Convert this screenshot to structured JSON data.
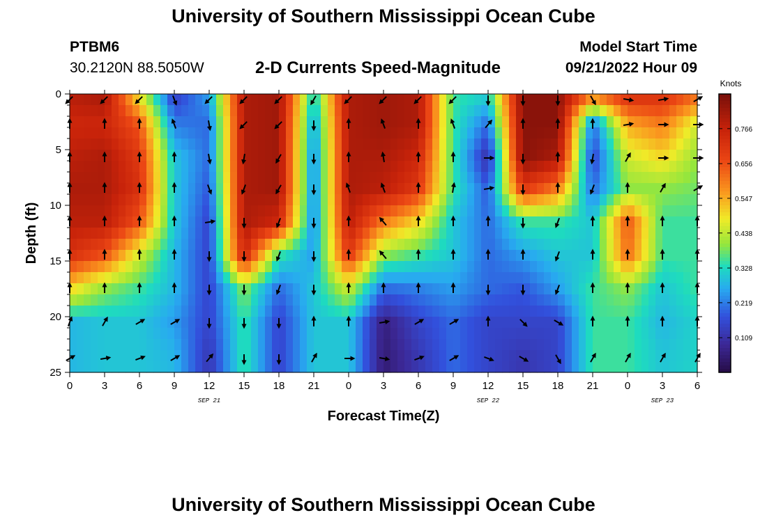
{
  "chart_data": {
    "type": "heatmap",
    "title": "University of Southern Mississippi Ocean Cube",
    "subtitle": "2-D Currents Speed-Magnitude",
    "station": "PTBM6",
    "location": "30.2120N  88.5050W",
    "model_start_label": "Model Start Time",
    "model_start_value": "09/21/2022 Hour 09",
    "footer_title": "University of Southern Mississippi Ocean Cube",
    "xlabel": "Forecast Time(Z)",
    "ylabel": "Depth (ft)",
    "x_tick_labels": [
      "0",
      "3",
      "6",
      "9",
      "12",
      "15",
      "18",
      "21",
      "0",
      "3",
      "6",
      "9",
      "12",
      "15",
      "18",
      "21",
      "0",
      "3",
      "6"
    ],
    "date_labels": [
      {
        "text": "SEP 21",
        "tick_index": 4
      },
      {
        "text": "SEP 22",
        "tick_index": 12
      },
      {
        "text": "SEP 23",
        "tick_index": 17
      }
    ],
    "y_tick_labels": [
      "0",
      "5",
      "10",
      "15",
      "20",
      "25"
    ],
    "ylim": [
      0,
      25
    ],
    "colorbar": {
      "title": "Knots",
      "min": 0.0,
      "max": 0.875,
      "tick_labels": [
        "0.109",
        "0.219",
        "0.328",
        "0.438",
        "0.547",
        "0.656",
        "0.766"
      ],
      "tick_values": [
        0.109,
        0.219,
        0.328,
        0.438,
        0.547,
        0.656,
        0.766
      ]
    },
    "depth_levels_ft": [
      0.5,
      2.75,
      5.75,
      8.5,
      11.5,
      14.5,
      17.5,
      20.5,
      23.75
    ],
    "time_columns_hours": [
      0,
      3,
      6,
      9,
      12,
      15,
      18,
      21,
      24,
      27,
      30,
      33,
      36,
      39,
      42,
      45,
      48,
      51,
      54
    ],
    "speed_knots": [
      [
        0.78,
        0.8,
        0.5,
        0.15,
        0.25,
        0.8,
        0.82,
        0.3,
        0.8,
        0.82,
        0.8,
        0.35,
        0.3,
        0.85,
        0.85,
        0.55,
        0.7,
        0.7,
        0.6
      ],
      [
        0.75,
        0.75,
        0.65,
        0.22,
        0.2,
        0.8,
        0.82,
        0.25,
        0.8,
        0.82,
        0.8,
        0.35,
        0.2,
        0.85,
        0.85,
        0.2,
        0.55,
        0.6,
        0.45
      ],
      [
        0.78,
        0.8,
        0.7,
        0.3,
        0.2,
        0.8,
        0.82,
        0.22,
        0.8,
        0.8,
        0.75,
        0.35,
        0.1,
        0.85,
        0.8,
        0.15,
        0.45,
        0.5,
        0.4
      ],
      [
        0.8,
        0.8,
        0.72,
        0.3,
        0.18,
        0.8,
        0.82,
        0.22,
        0.8,
        0.78,
        0.7,
        0.35,
        0.18,
        0.7,
        0.6,
        0.2,
        0.4,
        0.4,
        0.38
      ],
      [
        0.78,
        0.78,
        0.65,
        0.3,
        0.15,
        0.8,
        0.75,
        0.22,
        0.78,
        0.6,
        0.5,
        0.3,
        0.2,
        0.35,
        0.35,
        0.3,
        0.65,
        0.35,
        0.35
      ],
      [
        0.72,
        0.65,
        0.45,
        0.28,
        0.15,
        0.75,
        0.35,
        0.25,
        0.7,
        0.4,
        0.35,
        0.3,
        0.2,
        0.25,
        0.3,
        0.3,
        0.62,
        0.35,
        0.35
      ],
      [
        0.5,
        0.4,
        0.35,
        0.28,
        0.15,
        0.4,
        0.2,
        0.3,
        0.45,
        0.2,
        0.22,
        0.25,
        0.2,
        0.18,
        0.25,
        0.35,
        0.4,
        0.3,
        0.35
      ],
      [
        0.28,
        0.3,
        0.3,
        0.25,
        0.15,
        0.35,
        0.15,
        0.3,
        0.3,
        0.06,
        0.15,
        0.2,
        0.15,
        0.15,
        0.15,
        0.35,
        0.35,
        0.28,
        0.32
      ],
      [
        0.28,
        0.3,
        0.3,
        0.28,
        0.12,
        0.35,
        0.15,
        0.3,
        0.3,
        0.05,
        0.12,
        0.2,
        0.15,
        0.12,
        0.15,
        0.35,
        0.35,
        0.3,
        0.32
      ]
    ],
    "arrow_angles_deg": [
      [
        225,
        225,
        225,
        160,
        225,
        225,
        225,
        210,
        225,
        225,
        225,
        225,
        180,
        180,
        180,
        150,
        100,
        80,
        60
      ],
      [
        0,
        0,
        0,
        340,
        170,
        225,
        225,
        180,
        0,
        340,
        0,
        340,
        40,
        0,
        0,
        0,
        80,
        90,
        90
      ],
      [
        0,
        0,
        0,
        0,
        170,
        190,
        210,
        180,
        0,
        350,
        0,
        0,
        90,
        180,
        0,
        190,
        30,
        90,
        90
      ],
      [
        0,
        0,
        0,
        0,
        160,
        200,
        210,
        180,
        340,
        340,
        0,
        10,
        80,
        180,
        0,
        200,
        0,
        30,
        60
      ],
      [
        0,
        0,
        0,
        0,
        80,
        180,
        200,
        180,
        0,
        320,
        0,
        0,
        0,
        180,
        200,
        0,
        0,
        0,
        0
      ],
      [
        0,
        0,
        0,
        0,
        180,
        180,
        200,
        180,
        0,
        320,
        0,
        0,
        0,
        0,
        200,
        0,
        0,
        0,
        0
      ],
      [
        0,
        0,
        0,
        0,
        180,
        180,
        200,
        180,
        0,
        0,
        0,
        0,
        180,
        180,
        200,
        0,
        0,
        0,
        0
      ],
      [
        20,
        30,
        60,
        60,
        180,
        180,
        180,
        0,
        0,
        80,
        60,
        60,
        0,
        135,
        120,
        0,
        0,
        0,
        0
      ],
      [
        60,
        80,
        70,
        60,
        40,
        180,
        180,
        30,
        90,
        100,
        70,
        60,
        110,
        120,
        150,
        30,
        30,
        30,
        30
      ]
    ]
  }
}
